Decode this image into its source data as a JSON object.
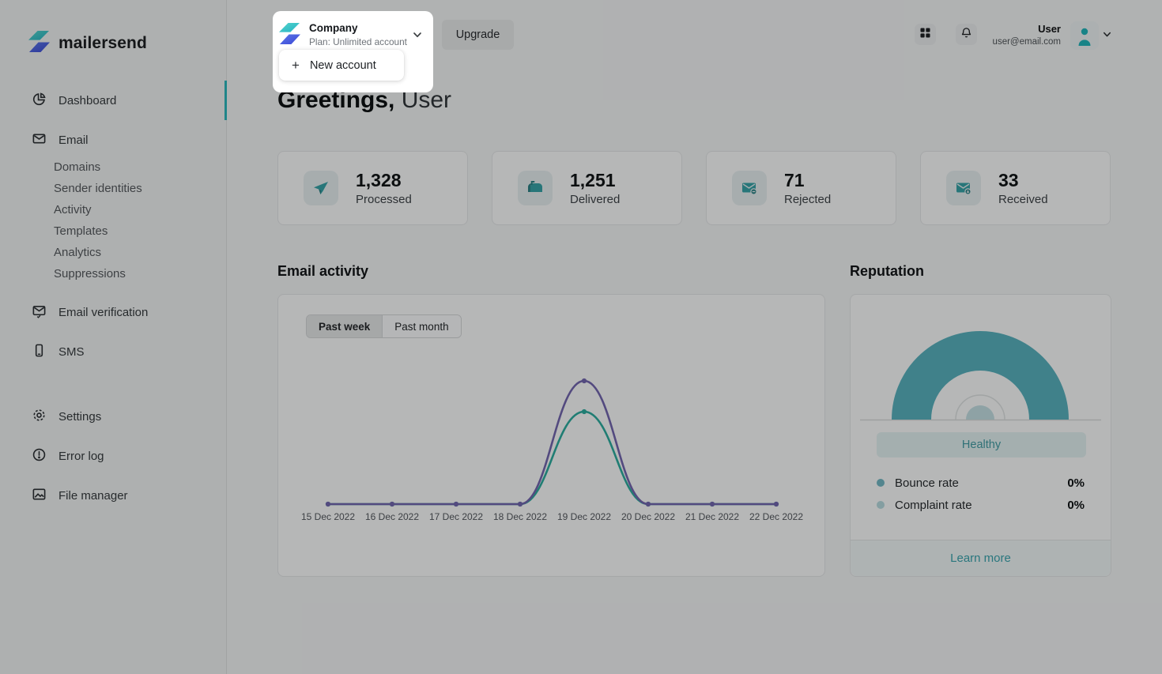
{
  "brand": {
    "name": "mailersend",
    "accent_teal": "#24b3b8",
    "logo_teal": "#3cc4cb",
    "logo_blue": "#4c62dd",
    "active_indicator": "#2bb6bc"
  },
  "sidebar": {
    "items_main": [
      {
        "label": "Dashboard",
        "icon": "dashboard-pie-icon",
        "active": true
      },
      {
        "label": "Email",
        "icon": "envelope-send-icon",
        "active": false
      }
    ],
    "email_sub": [
      "Domains",
      "Sender identities",
      "Activity",
      "Templates",
      "Analytics",
      "Suppressions"
    ],
    "items_mid": [
      {
        "label": "Email verification",
        "icon": "envelope-check-icon"
      },
      {
        "label": "SMS",
        "icon": "phone-icon"
      }
    ],
    "items_bottom": [
      {
        "label": "Settings",
        "icon": "gear-icon"
      },
      {
        "label": "Error log",
        "icon": "alert-circle-icon"
      },
      {
        "label": "File manager",
        "icon": "image-icon"
      }
    ]
  },
  "header": {
    "account_switcher": {
      "company": "Company",
      "plan": "Plan: Unlimited account"
    },
    "account_menu": {
      "plus": "+",
      "new_account": "New account"
    },
    "upgrade_label": "Upgrade",
    "user": {
      "name": "User",
      "email": "user@email.com"
    }
  },
  "greeting": {
    "bold": "Greetings,",
    "name": " User"
  },
  "stats": [
    {
      "value": "1,328",
      "label": "Processed",
      "icon": "paper-plane-icon"
    },
    {
      "value": "1,251",
      "label": "Delivered",
      "icon": "mailbox-icon"
    },
    {
      "value": "71",
      "label": "Rejected",
      "icon": "envelope-minus-icon"
    },
    {
      "value": "33",
      "label": "Received",
      "icon": "envelope-down-icon"
    }
  ],
  "email_activity": {
    "title": "Email activity",
    "tabs": [
      {
        "label": "Past week",
        "active": true
      },
      {
        "label": "Past month",
        "active": false
      }
    ]
  },
  "chart_data": {
    "type": "line",
    "title": "Email activity",
    "x": [
      "15 Dec 2022",
      "16 Dec 2022",
      "17 Dec 2022",
      "18 Dec 2022",
      "19 Dec 2022",
      "20 Dec 2022",
      "21 Dec 2022",
      "22 Dec 2022"
    ],
    "series": [
      {
        "name": "series-1",
        "color": "#7264ae",
        "values": [
          0,
          0,
          0,
          0,
          100,
          0,
          0,
          0
        ]
      },
      {
        "name": "series-2",
        "color": "#2bac9e",
        "values": [
          0,
          0,
          0,
          0,
          75,
          0,
          0,
          0
        ]
      }
    ],
    "ylim": [
      0,
      107
    ],
    "grid": false,
    "legend": false,
    "xlabel": "",
    "ylabel": ""
  },
  "reputation": {
    "title": "Reputation",
    "status": "Healthy",
    "gauge_color": "#57b1bd",
    "rows": [
      {
        "label": "Bounce rate",
        "value": "0%",
        "dot_color": "#72b7c3"
      },
      {
        "label": "Complaint rate",
        "value": "0%",
        "dot_color": "#b7dade"
      }
    ],
    "learn_more": "Learn more"
  },
  "colors": {
    "overlay": "rgba(8,9,10,0.285)",
    "card_bg": "#fcfcfd",
    "page_bg": "#f4f5f5",
    "sidebar_bg": "#f2f3f3",
    "healthy_badge_bg": "#e4f1f2",
    "healthy_text": "#3f9aa2",
    "link_teal": "#38a3ad"
  }
}
